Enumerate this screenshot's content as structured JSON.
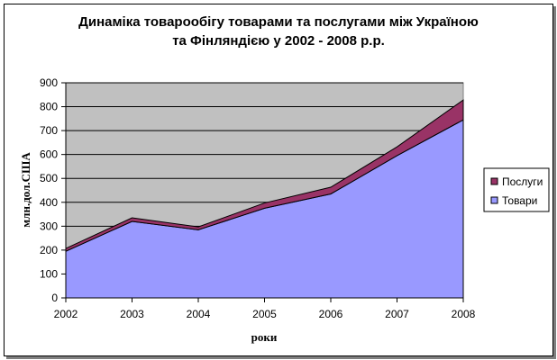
{
  "chart_data": {
    "type": "area",
    "stacked": true,
    "title": [
      "Динаміка товарообігу товарами та послугами між Україною",
      "та Фінляндією у 2002 - 2008 р.р."
    ],
    "xlabel": "роки",
    "ylabel": "млн.дол.США",
    "ylim": [
      0,
      900
    ],
    "yticks": [
      0,
      100,
      200,
      300,
      400,
      500,
      600,
      700,
      800,
      900
    ],
    "categories": [
      "2002",
      "2003",
      "2004",
      "2005",
      "2006",
      "2007",
      "2008"
    ],
    "series": [
      {
        "name": "Товари",
        "values": [
          195,
          320,
          285,
          375,
          435,
          595,
          745
        ],
        "color": "#9999ff"
      },
      {
        "name": "Послуги",
        "values": [
          12,
          15,
          12,
          22,
          28,
          37,
          83
        ],
        "color": "#993366"
      }
    ],
    "legend": {
      "position": "right",
      "order": [
        "Послуги",
        "Товари"
      ]
    },
    "grid": true,
    "plot_background": "#c0c0c0"
  }
}
